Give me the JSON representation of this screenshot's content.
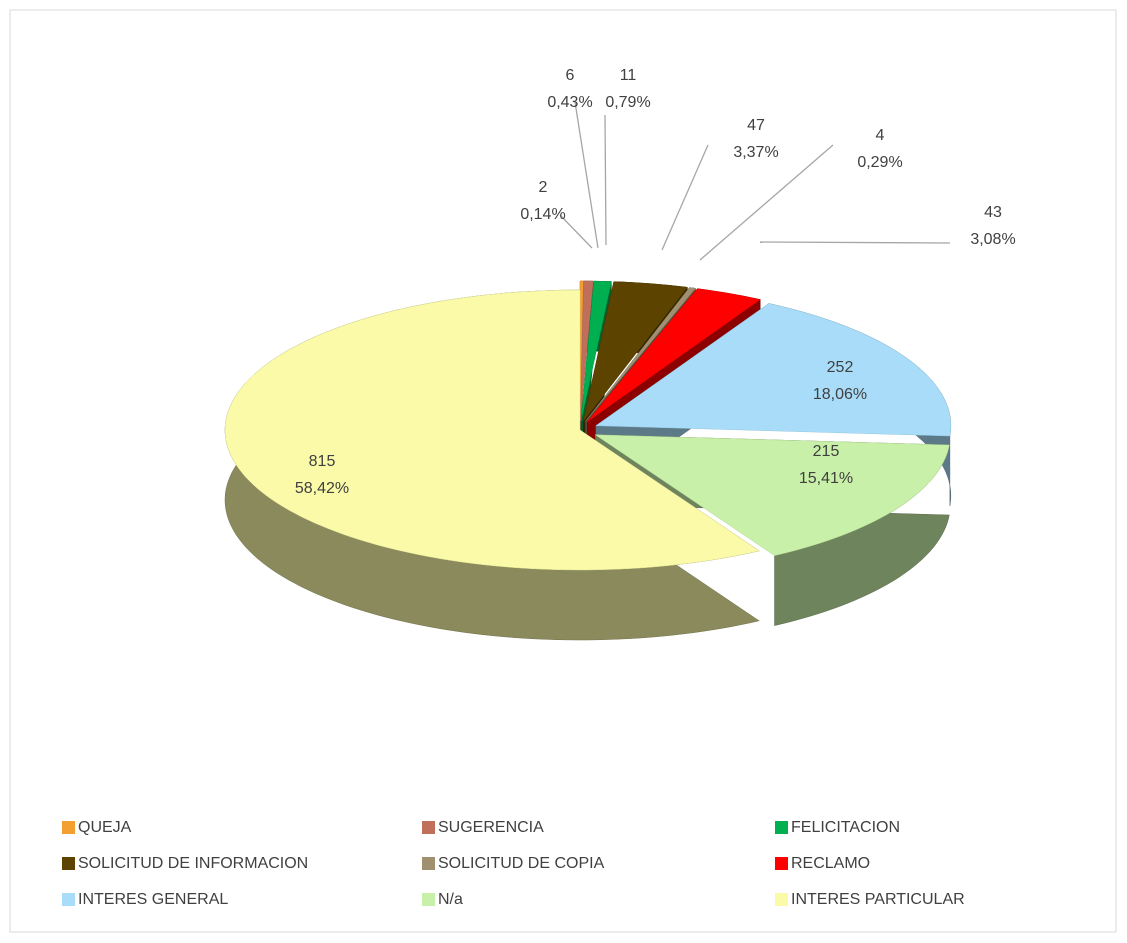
{
  "chart_data": {
    "type": "pie3d",
    "categories": [
      "QUEJA",
      "SUGERENCIA",
      "FELICITACION",
      "SOLICITUD DE INFORMACION",
      "SOLICITUD DE COPIA",
      "RECLAMO",
      "INTERES GENERAL",
      "N/a",
      "INTERES PARTICULAR"
    ],
    "values": [
      2,
      6,
      11,
      47,
      4,
      43,
      252,
      215,
      815
    ],
    "percentages": [
      0.14,
      0.43,
      0.79,
      3.37,
      0.29,
      3.08,
      18.06,
      15.41,
      58.42
    ],
    "percentage_labels": [
      "0,14%",
      "0,43%",
      "0,79%",
      "3,37%",
      "0,29%",
      "3,08%",
      "18,06%",
      "15,41%",
      "58,42%"
    ],
    "colors": [
      "#f4a030",
      "#c0705a",
      "#00b050",
      "#5c4300",
      "#a09070",
      "#ff0000",
      "#a8dcf8",
      "#c8f0a8",
      "#fafaa8"
    ],
    "legend": "bottom"
  }
}
